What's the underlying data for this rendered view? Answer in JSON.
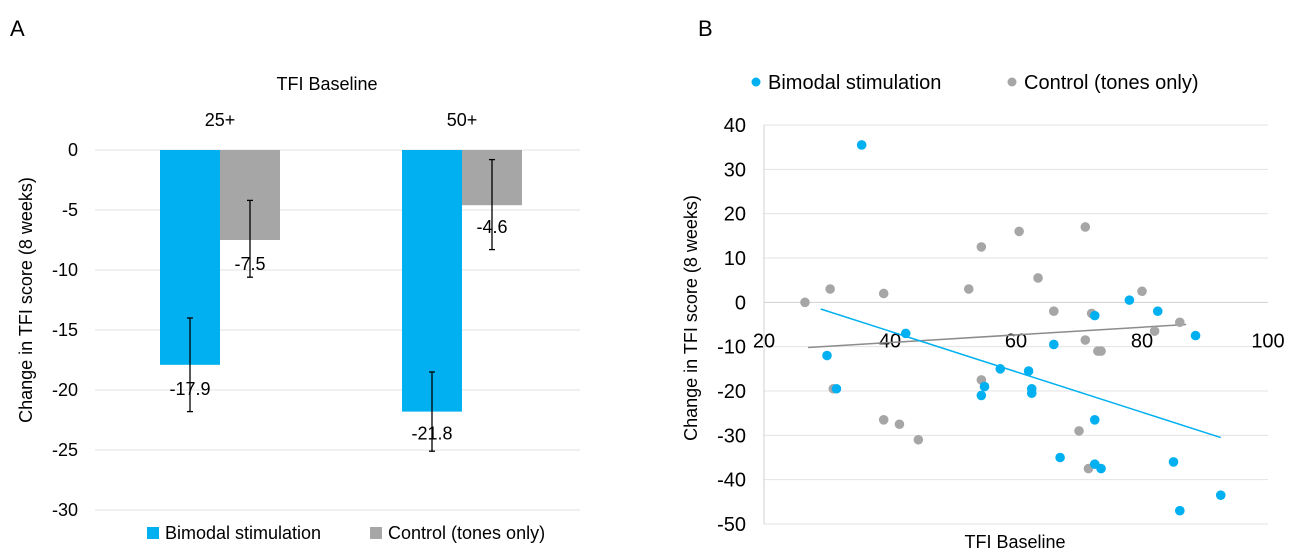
{
  "colors": {
    "bimodal": "#00b0f0",
    "control": "#a6a6a6",
    "grid": "#e3e3e3"
  },
  "chart_data": [
    {
      "panel_label": "A",
      "type": "bar",
      "title": "TFI Baseline",
      "categories": [
        "25+",
        "50+"
      ],
      "ylabel": "Change in TFI score (8 weeks)",
      "ylim": [
        -30,
        0
      ],
      "yticks": [
        0,
        -5,
        -10,
        -15,
        -20,
        -25,
        -30
      ],
      "ytick_labels": [
        "0",
        "-5",
        "-10",
        "-15",
        "-20",
        "-25",
        "-30"
      ],
      "grid": true,
      "legend": "bottom",
      "series": [
        {
          "name": "Bimodal stimulation",
          "values": [
            -17.9,
            -21.8
          ],
          "labels": [
            "-17.9",
            "-21.8"
          ],
          "err_low": [
            -21.8,
            -25.1
          ],
          "err_high": [
            -14.0,
            -18.5
          ]
        },
        {
          "name": "Control (tones only)",
          "values": [
            -7.5,
            -4.6
          ],
          "labels": [
            "-7.5",
            "-4.6"
          ],
          "err_low": [
            -10.6,
            -8.3
          ],
          "err_high": [
            -4.2,
            -0.8
          ]
        }
      ]
    },
    {
      "panel_label": "B",
      "type": "scatter",
      "xlabel": "TFI Baseline",
      "ylabel": "Change in TFI score (8 weeks)",
      "xlim": [
        20,
        100
      ],
      "ylim": [
        -50,
        40
      ],
      "xticks": [
        20,
        40,
        60,
        80,
        100
      ],
      "xtick_labels": [
        "20",
        "40",
        "60",
        "80",
        "100"
      ],
      "yticks": [
        40,
        30,
        20,
        10,
        0,
        -10,
        -20,
        -30,
        -40,
        -50
      ],
      "ytick_labels": [
        "40",
        "30",
        "20",
        "10",
        "0",
        "-10",
        "-20",
        "-30",
        "-40",
        "-50"
      ],
      "grid": true,
      "legend": "top",
      "series": [
        {
          "name": "Bimodal stimulation",
          "points": [
            [
              35.5,
              35.5
            ],
            [
              30,
              -12
            ],
            [
              31.5,
              -19.5
            ],
            [
              42.5,
              -7
            ],
            [
              54.5,
              -21
            ],
            [
              55,
              -19
            ],
            [
              57.5,
              -15
            ],
            [
              62,
              -15.5
            ],
            [
              62.5,
              -19.5
            ],
            [
              62.5,
              -20.5
            ],
            [
              66,
              -9.5
            ],
            [
              67,
              -35
            ],
            [
              72.5,
              -3
            ],
            [
              72.5,
              -26.5
            ],
            [
              72.5,
              -36.5
            ],
            [
              73.5,
              -37.5
            ],
            [
              78,
              0.5
            ],
            [
              82.5,
              -2
            ],
            [
              85,
              -36
            ],
            [
              86,
              -47
            ],
            [
              88.5,
              -7.5
            ],
            [
              92.5,
              -43.5
            ]
          ],
          "trend": [
            [
              29,
              -1.5
            ],
            [
              92.5,
              -30.5
            ]
          ]
        },
        {
          "name": "Control (tones only)",
          "points": [
            [
              26.5,
              0
            ],
            [
              30.5,
              3
            ],
            [
              31,
              -19.5
            ],
            [
              39,
              2
            ],
            [
              39,
              -26.5
            ],
            [
              41.5,
              -27.5
            ],
            [
              44.5,
              -31
            ],
            [
              52.5,
              3
            ],
            [
              54.5,
              -17.5
            ],
            [
              54.5,
              12.5
            ],
            [
              60.5,
              16
            ],
            [
              63.5,
              5.5
            ],
            [
              66,
              -2
            ],
            [
              70,
              -29
            ],
            [
              71,
              17
            ],
            [
              71,
              -8.5
            ],
            [
              71.5,
              -37.5
            ],
            [
              72,
              -2.5
            ],
            [
              73,
              -11
            ],
            [
              73.5,
              -11
            ],
            [
              80,
              2.5
            ],
            [
              82,
              -6.5
            ],
            [
              86,
              -4.5
            ]
          ],
          "trend": [
            [
              27,
              -10.2
            ],
            [
              87,
              -5
            ]
          ]
        }
      ]
    }
  ]
}
